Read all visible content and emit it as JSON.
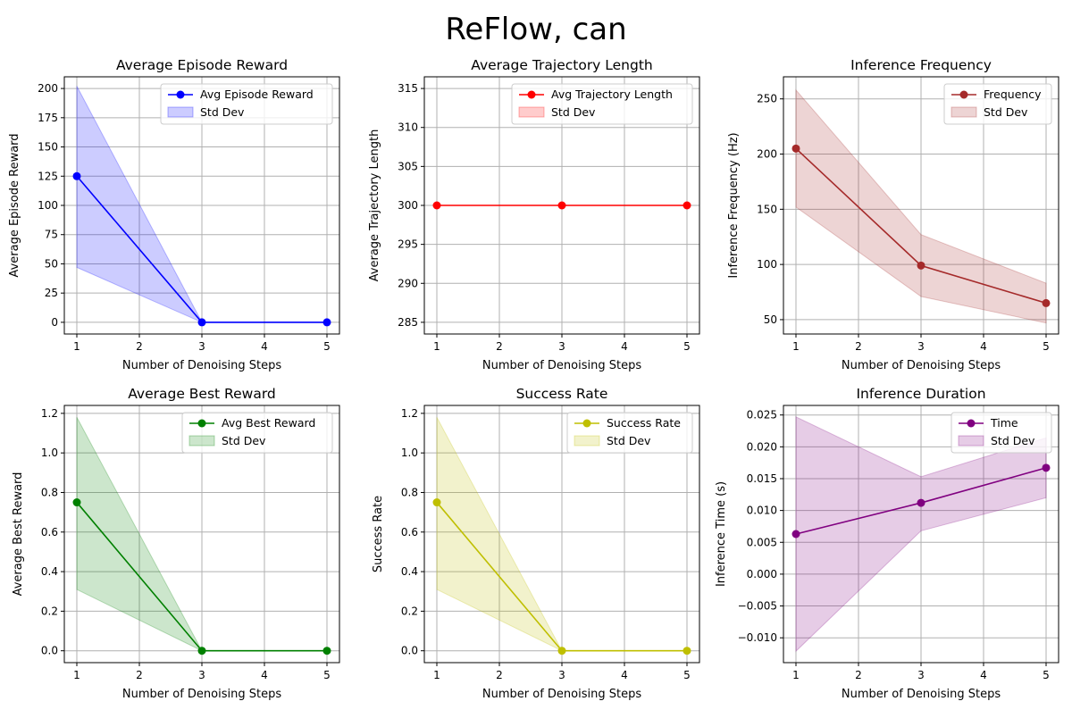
{
  "figure": {
    "title": "ReFlow, can"
  },
  "chart_data": [
    {
      "type": "line",
      "title": "Average Episode Reward",
      "xlabel": "Number of Denoising Steps",
      "ylabel": "Average Episode Reward",
      "x": [
        1,
        3,
        5
      ],
      "xticks": [
        1,
        2,
        3,
        4,
        5
      ],
      "xlim": [
        0.8,
        5.2
      ],
      "ylim": [
        -10,
        210
      ],
      "yticks": [
        0,
        25,
        50,
        75,
        100,
        125,
        150,
        175,
        200
      ],
      "series": [
        {
          "name": "Avg Episode Reward",
          "values": [
            125,
            0,
            0
          ],
          "band_upper": [
            202,
            0,
            0
          ],
          "band_lower": [
            47,
            0,
            0
          ],
          "band_name": "Std Dev"
        }
      ],
      "color": "#0000ff",
      "band_color": "#0000ff",
      "grid": true,
      "legend": "top-right"
    },
    {
      "type": "line",
      "title": "Average Trajectory Length",
      "xlabel": "Number of Denoising Steps",
      "ylabel": "Average Trajectory Length",
      "x": [
        1,
        3,
        5
      ],
      "xticks": [
        1,
        2,
        3,
        4,
        5
      ],
      "xlim": [
        0.8,
        5.2
      ],
      "ylim": [
        283.5,
        316.5
      ],
      "yticks": [
        285,
        290,
        295,
        300,
        305,
        310,
        315
      ],
      "series": [
        {
          "name": "Avg Trajectory Length",
          "values": [
            300,
            300,
            300
          ],
          "band_upper": [
            300,
            300,
            300
          ],
          "band_lower": [
            300,
            300,
            300
          ],
          "band_name": "Std Dev"
        }
      ],
      "color": "#ff0000",
      "band_color": "#ff0000",
      "grid": true,
      "legend": "top-right"
    },
    {
      "type": "line",
      "title": "Inference Frequency",
      "xlabel": "Number of Denoising Steps",
      "ylabel": "Inference Frequency (Hz)",
      "x": [
        1,
        3,
        5
      ],
      "xticks": [
        1,
        2,
        3,
        4,
        5
      ],
      "xlim": [
        0.8,
        5.2
      ],
      "ylim": [
        37,
        270
      ],
      "yticks": [
        50,
        100,
        150,
        200,
        250
      ],
      "series": [
        {
          "name": "Frequency",
          "values": [
            205,
            99,
            65
          ],
          "band_upper": [
            258,
            127,
            83
          ],
          "band_lower": [
            152,
            71,
            47
          ],
          "band_name": "Std Dev"
        }
      ],
      "color": "#a52a2a",
      "band_color": "#a52a2a",
      "grid": true,
      "legend": "top-right"
    },
    {
      "type": "line",
      "title": "Average Best Reward",
      "xlabel": "Number of Denoising Steps",
      "ylabel": "Average Best Reward",
      "x": [
        1,
        3,
        5
      ],
      "xticks": [
        1,
        2,
        3,
        4,
        5
      ],
      "xlim": [
        0.8,
        5.2
      ],
      "ylim": [
        -0.06,
        1.24
      ],
      "yticks": [
        0.0,
        0.2,
        0.4,
        0.6,
        0.8,
        1.0,
        1.2
      ],
      "ytick_decimals": 1,
      "series": [
        {
          "name": "Avg Best Reward",
          "values": [
            0.75,
            0,
            0
          ],
          "band_upper": [
            1.18,
            0,
            0
          ],
          "band_lower": [
            0.31,
            0,
            0
          ],
          "band_name": "Std Dev"
        }
      ],
      "color": "#008000",
      "band_color": "#008000",
      "grid": true,
      "legend": "top-right"
    },
    {
      "type": "line",
      "title": "Success Rate",
      "xlabel": "Number of Denoising Steps",
      "ylabel": "Success Rate",
      "x": [
        1,
        3,
        5
      ],
      "xticks": [
        1,
        2,
        3,
        4,
        5
      ],
      "xlim": [
        0.8,
        5.2
      ],
      "ylim": [
        -0.06,
        1.24
      ],
      "yticks": [
        0.0,
        0.2,
        0.4,
        0.6,
        0.8,
        1.0,
        1.2
      ],
      "ytick_decimals": 1,
      "series": [
        {
          "name": "Success Rate",
          "values": [
            0.75,
            0,
            0
          ],
          "band_upper": [
            1.18,
            0,
            0
          ],
          "band_lower": [
            0.31,
            0,
            0
          ],
          "band_name": "Std Dev"
        }
      ],
      "color": "#bfbf00",
      "band_color": "#bfbf00",
      "grid": true,
      "legend": "top-right"
    },
    {
      "type": "line",
      "title": "Inference Duration",
      "xlabel": "Number of Denoising Steps",
      "ylabel": "Inference Time (s)",
      "x": [
        1,
        3,
        5
      ],
      "xticks": [
        1,
        2,
        3,
        4,
        5
      ],
      "xlim": [
        0.8,
        5.2
      ],
      "ylim": [
        -0.0139,
        0.0265
      ],
      "yticks": [
        -0.01,
        -0.005,
        0.0,
        0.005,
        0.01,
        0.015,
        0.02,
        0.025
      ],
      "ytick_decimals": 3,
      "series": [
        {
          "name": "Time",
          "values": [
            0.0063,
            0.0112,
            0.0167
          ],
          "band_upper": [
            0.0247,
            0.0153,
            0.0214
          ],
          "band_lower": [
            -0.0121,
            0.0068,
            0.012
          ],
          "band_name": "Std Dev"
        }
      ],
      "color": "#800080",
      "band_color": "#800080",
      "grid": true,
      "legend": "top-right"
    }
  ]
}
